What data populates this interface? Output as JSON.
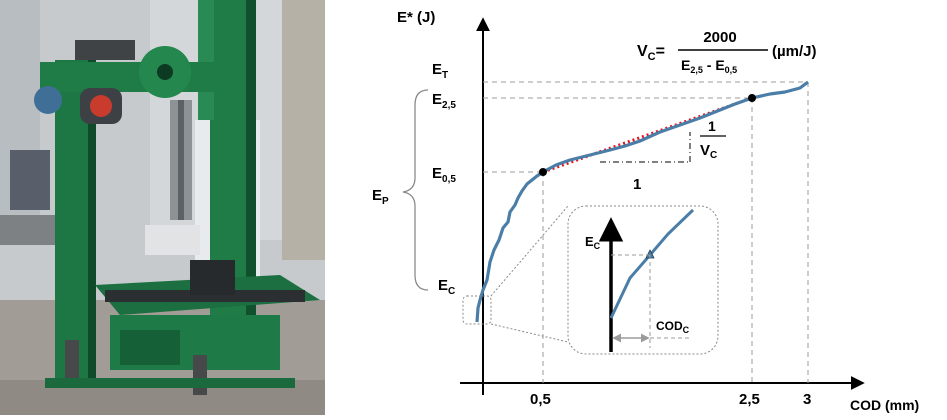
{
  "photo": {
    "subject": "pendulum-impact-test-machine",
    "colors": {
      "machine": "#1e7a46",
      "machine_dark": "#0f4a2a",
      "wall": "#c9cdd0",
      "floor": "#9a9690"
    }
  },
  "diagram": {
    "y_axis_label": "E* (J)",
    "x_axis_label": "COD (mm)",
    "formula": {
      "lhs_main": "V",
      "lhs_sub": "C",
      "lhs_eq": "=",
      "numerator": "2000",
      "den_e1": "E",
      "den_e1_sub": "2,5",
      "den_minus": " - ",
      "den_e2": "E",
      "den_e2_sub": "0,5",
      "units": "(µm/J)"
    },
    "y_labels": {
      "et_main": "E",
      "et_sub": "T",
      "e25_main": "E",
      "e25_sub": "2,5",
      "e05_main": "E",
      "e05_sub": "0,5",
      "ep_main": "E",
      "ep_sub": "P",
      "ec_main": "E",
      "ec_sub": "C"
    },
    "x_ticks": [
      "0,5",
      "2,5",
      "3"
    ],
    "slope": {
      "run": "1",
      "rise_num": "1",
      "rise_den_main": "V",
      "rise_den_sub": "C"
    },
    "inset": {
      "ec_main": "E",
      "ec_sub": "C",
      "cod_main": "COD",
      "cod_sub": "C"
    },
    "colors": {
      "curve": "#4a7ea8",
      "fit_line": "#e8141b",
      "guides": "#9b9b9b",
      "axis": "#000000"
    }
  }
}
